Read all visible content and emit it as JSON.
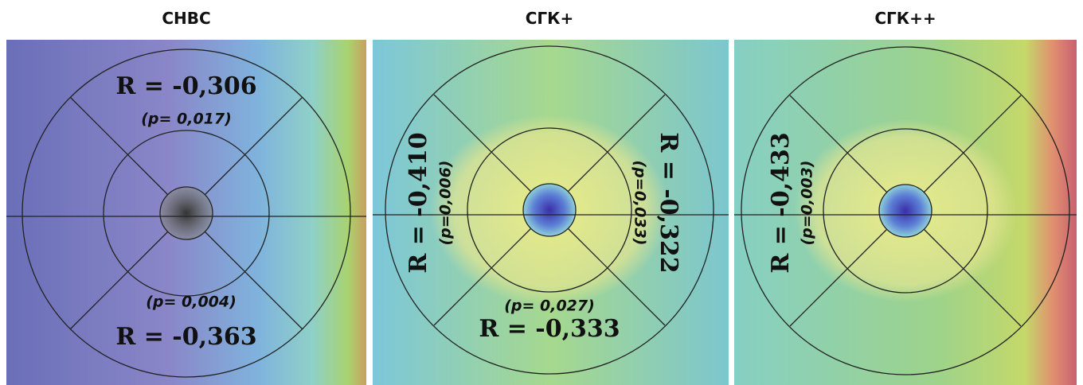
{
  "panels": [
    {
      "title": "СНВС",
      "labels": [
        "R = -0,306",
        "(p= 0,017)",
        "(p= 0,004)",
        "R = -0,363"
      ]
    },
    {
      "title": "СГК+",
      "labels": [
        "R = -0,410",
        "(p=0,006)",
        "R = -0,322",
        "(p=0,033)",
        "(p= 0,027)",
        "R = -0,333"
      ]
    },
    {
      "title": "СГК++",
      "labels": [
        "R = -0,433",
        "(p=0,003)"
      ]
    }
  ]
}
